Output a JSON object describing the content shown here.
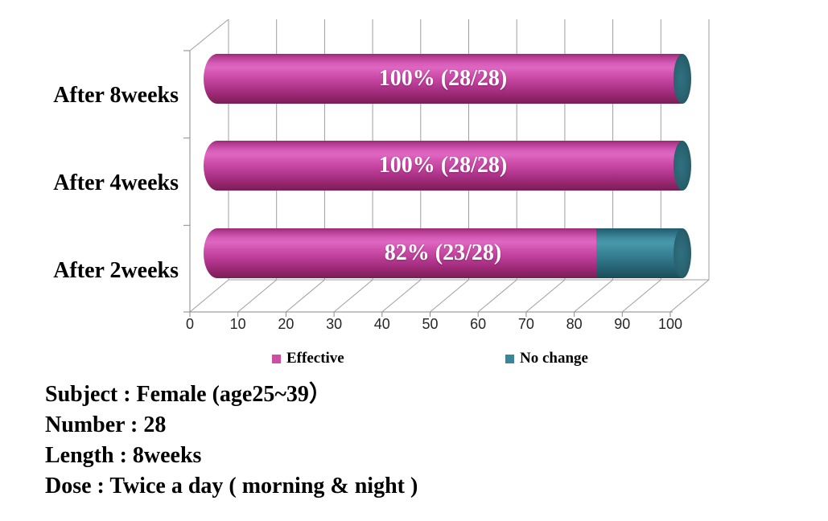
{
  "chart_data": {
    "type": "bar",
    "orientation": "horizontal",
    "stacked": true,
    "style": "3d-cylinder",
    "categories": [
      "After 8weeks",
      "After 4weeks",
      "After 2weeks"
    ],
    "series": [
      {
        "name": "Effective",
        "color": "#cd4fa3",
        "values": [
          100,
          100,
          82
        ]
      },
      {
        "name": "No change",
        "color": "#3d8499",
        "values": [
          0,
          0,
          18
        ]
      }
    ],
    "bar_labels": [
      "100% (28/28)",
      "100% (28/28)",
      "82% (23/28)"
    ],
    "x_ticks": [
      "0",
      "10",
      "20",
      "30",
      "40",
      "50",
      "60",
      "70",
      "80",
      "90",
      "100"
    ],
    "xlim": [
      0,
      100
    ],
    "grid": true,
    "legend_position": "bottom",
    "bar_label_color": "#ffffff",
    "gridline_color": "#9f9f9f",
    "axis_color": "#8a8a8a"
  },
  "legend": {
    "items": [
      {
        "label": "Effective",
        "color": "#cd4fa3"
      },
      {
        "label": "No change",
        "color": "#3d8499"
      }
    ]
  },
  "info": {
    "lines": [
      "Subject : Female (age25~39）",
      "Number : 28",
      "Length : 8weeks",
      "Dose : Twice a day ( morning & night )"
    ]
  }
}
